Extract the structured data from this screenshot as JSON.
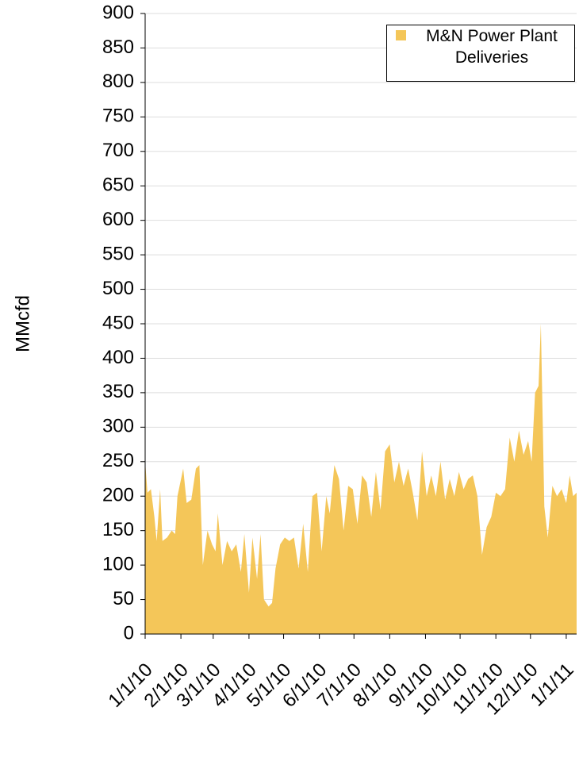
{
  "chart_data": {
    "type": "area",
    "y_label": "MMcfd",
    "series": [
      {
        "name": "M&N Power Plant Deliveries",
        "color": "#f4c659",
        "x": [
          "1/1/10",
          "1/3/10",
          "1/6/10",
          "1/9/10",
          "1/11/10",
          "1/14/10",
          "1/16/10",
          "1/20/10",
          "1/24/10",
          "1/27/10",
          "1/29/10",
          "2/3/10",
          "2/6/10",
          "2/10/10",
          "2/14/10",
          "2/17/10",
          "2/20/10",
          "2/24/10",
          "2/28/10",
          "3/3/10",
          "3/5/10",
          "3/9/10",
          "3/13/10",
          "3/17/10",
          "3/21/10",
          "3/25/10",
          "3/28/10",
          "4/1/10",
          "4/4/10",
          "4/8/10",
          "4/11/10",
          "4/14/10",
          "4/18/10",
          "4/21/10",
          "4/24/10",
          "4/28/10",
          "5/2/10",
          "5/6/10",
          "5/10/10",
          "5/14/10",
          "5/18/10",
          "5/22/10",
          "5/26/10",
          "5/30/10",
          "6/3/10",
          "6/7/10",
          "6/10/10",
          "6/14/10",
          "6/18/10",
          "6/22/10",
          "6/26/10",
          "6/30/10",
          "7/4/10",
          "7/8/10",
          "7/12/10",
          "7/16/10",
          "7/20/10",
          "7/24/10",
          "7/28/10",
          "8/1/10",
          "8/5/10",
          "8/9/10",
          "8/13/10",
          "8/17/10",
          "8/21/10",
          "8/25/10",
          "8/29/10",
          "9/2/10",
          "9/6/10",
          "9/10/10",
          "9/14/10",
          "9/18/10",
          "9/22/10",
          "9/26/10",
          "9/30/10",
          "10/4/10",
          "10/8/10",
          "10/12/10",
          "10/16/10",
          "10/20/10",
          "10/24/10",
          "10/28/10",
          "11/1/10",
          "11/5/10",
          "11/9/10",
          "11/13/10",
          "11/17/10",
          "11/21/10",
          "11/25/10",
          "11/29/10",
          "12/2/10",
          "12/5/10",
          "12/8/10",
          "12/10/10",
          "12/13/10",
          "12/16/10",
          "12/20/10",
          "12/24/10",
          "12/28/10",
          "1/1/11",
          "1/4/11",
          "1/7/11",
          "1/10/11"
        ],
        "values": [
          250,
          205,
          210,
          170,
          135,
          210,
          135,
          140,
          150,
          145,
          200,
          240,
          190,
          195,
          240,
          245,
          100,
          150,
          130,
          120,
          175,
          100,
          135,
          120,
          130,
          90,
          145,
          60,
          140,
          80,
          145,
          50,
          40,
          45,
          95,
          130,
          140,
          135,
          140,
          95,
          160,
          90,
          200,
          205,
          120,
          200,
          175,
          245,
          225,
          150,
          215,
          210,
          160,
          230,
          220,
          170,
          235,
          180,
          265,
          275,
          220,
          250,
          215,
          240,
          205,
          165,
          265,
          200,
          230,
          200,
          250,
          195,
          225,
          200,
          235,
          210,
          225,
          230,
          200,
          115,
          155,
          170,
          205,
          200,
          210,
          285,
          250,
          295,
          260,
          280,
          250,
          350,
          360,
          450,
          185,
          140,
          215,
          200,
          210,
          190,
          230,
          200,
          205
        ]
      }
    ],
    "xlim": [
      "1/1/10",
      "1/10/11"
    ],
    "xticks": [
      "1/1/10",
      "2/1/10",
      "3/1/10",
      "4/1/10",
      "5/1/10",
      "6/1/10",
      "7/1/10",
      "8/1/10",
      "9/1/10",
      "10/1/10",
      "11/1/10",
      "12/1/10",
      "1/1/11"
    ],
    "ylim": [
      0,
      900
    ],
    "yticks": [
      0,
      50,
      100,
      150,
      200,
      250,
      300,
      350,
      400,
      450,
      500,
      550,
      600,
      650,
      700,
      750,
      800,
      850,
      900
    ],
    "grid": true,
    "legend": "top-right"
  }
}
